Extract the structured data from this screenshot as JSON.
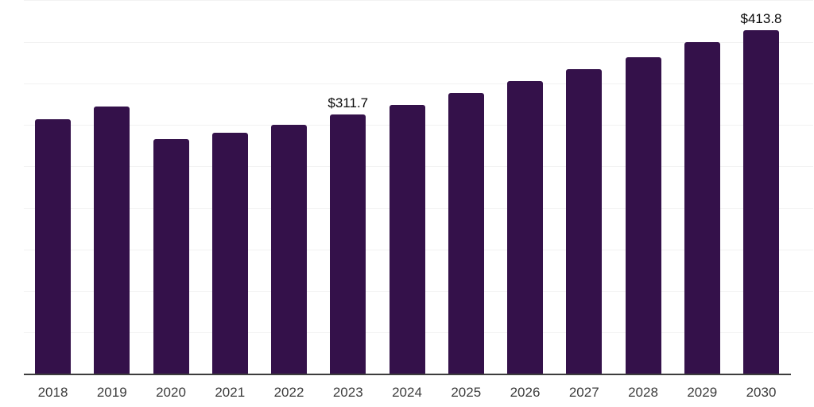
{
  "chart_data": {
    "type": "bar",
    "title": "",
    "xlabel": "",
    "ylabel": "",
    "categories": [
      "2018",
      "2019",
      "2020",
      "2021",
      "2022",
      "2023",
      "2024",
      "2025",
      "2026",
      "2027",
      "2028",
      "2029",
      "2030"
    ],
    "values": [
      306.4,
      321.7,
      282.4,
      289.8,
      299.4,
      311.7,
      323.9,
      337.7,
      352.6,
      366.7,
      380.8,
      399.3,
      413.8
    ],
    "data_labels": {
      "2023": "$311.7",
      "2030": "$413.8"
    },
    "ylim": [
      0,
      450
    ],
    "grid_step": 50,
    "grid": true,
    "legend": false,
    "colors": {
      "bar": "#34114a",
      "gridline": "#f2f2f2",
      "axis_line": "#3d3d3d",
      "tick_label": "#3c3c3c",
      "data_label": "#0a0a0a",
      "background": "#ffffff"
    }
  }
}
